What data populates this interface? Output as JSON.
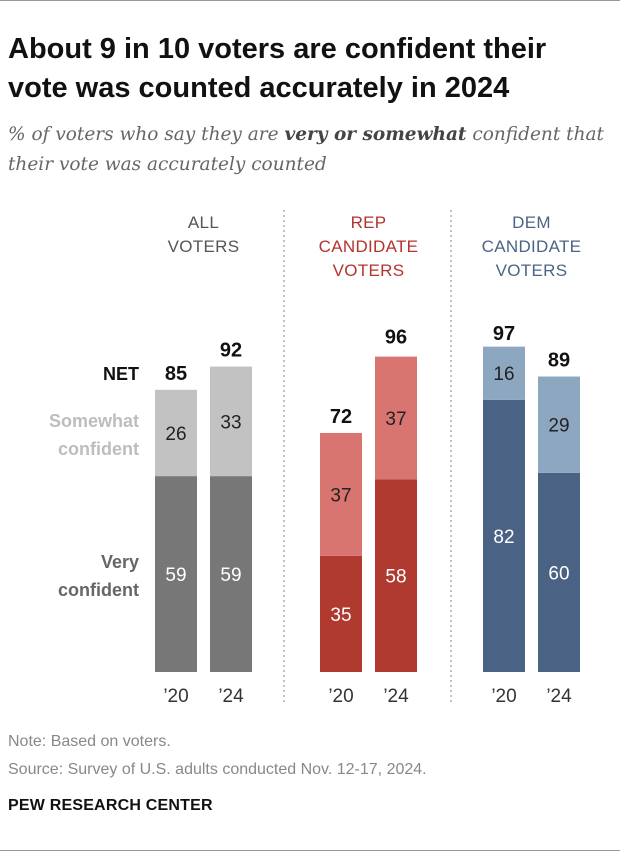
{
  "title": "About 9 in 10 voters are confident their vote was counted accurately in 2024",
  "subtitle": {
    "before": "% of voters who say they are ",
    "emphasis": "very or somewhat",
    "after": " confident that their vote was accurately counted"
  },
  "note": "Note: Based on voters.",
  "source": "Source: Survey of U.S. adults conducted Nov. 12-17, 2024.",
  "brand": "PEW RESEARCH CENTER",
  "chart_data": {
    "type": "bar",
    "stacked": true,
    "title": "About 9 in 10 voters are confident their vote was counted accurately in 2024",
    "ylim": [
      0,
      100
    ],
    "row_labels": {
      "net": "NET",
      "somewhat": [
        "Somewhat",
        "confident"
      ],
      "very": [
        "Very",
        "confident"
      ]
    },
    "groups": [
      {
        "id": "all",
        "label": [
          "ALL",
          "VOTERS"
        ],
        "header_color": "#555555",
        "very_color": "#777777",
        "somewhat_color": "#c2c2c2",
        "very_text_color": "#ffffff",
        "somewhat_text_color": "#222222",
        "bars": [
          {
            "year": "’20",
            "very": 59,
            "somewhat": 26,
            "net": 85
          },
          {
            "year": "’24",
            "very": 59,
            "somewhat": 33,
            "net": 92
          }
        ]
      },
      {
        "id": "rep",
        "label": [
          "REP",
          "CANDIDATE",
          "VOTERS"
        ],
        "header_color": "#b5322d",
        "very_color": "#b03a30",
        "somewhat_color": "#d97570",
        "very_text_color": "#ffffff",
        "somewhat_text_color": "#222222",
        "bars": [
          {
            "year": "’20",
            "very": 35,
            "somewhat": 37,
            "net": 72
          },
          {
            "year": "’24",
            "very": 58,
            "somewhat": 37,
            "net": 96
          }
        ]
      },
      {
        "id": "dem",
        "label": [
          "DEM",
          "CANDIDATE",
          "VOTERS"
        ],
        "header_color": "#4a6484",
        "very_color": "#4a6384",
        "somewhat_color": "#8ea7c0",
        "very_text_color": "#ffffff",
        "somewhat_text_color": "#222222",
        "bars": [
          {
            "year": "’20",
            "very": 82,
            "somewhat": 16,
            "net": 97
          },
          {
            "year": "’24",
            "very": 60,
            "somewhat": 29,
            "net": 89
          }
        ]
      }
    ]
  }
}
